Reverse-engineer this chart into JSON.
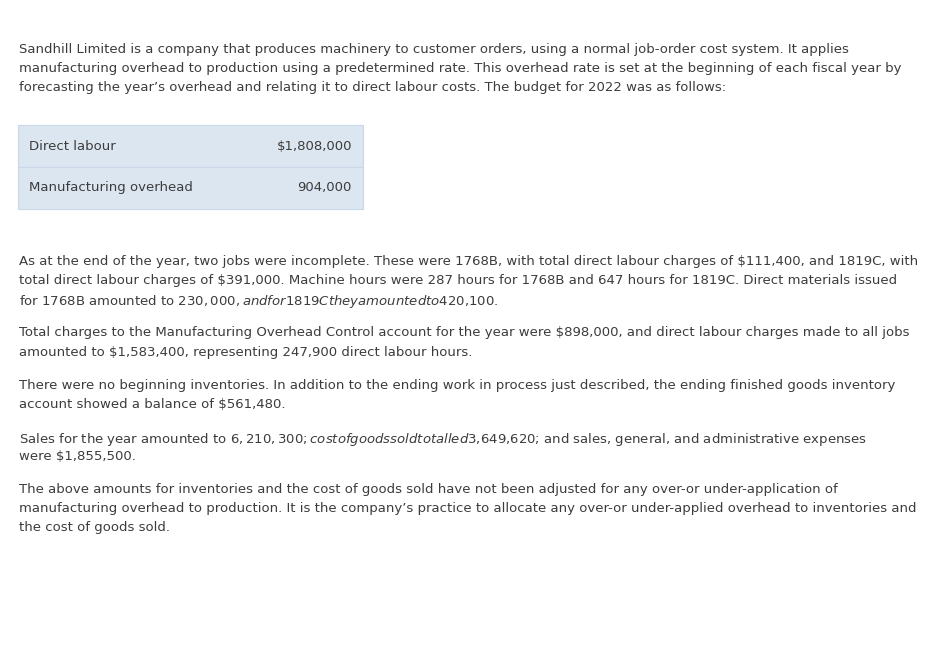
{
  "background_color": "#ffffff",
  "text_color": "#3c3c3c",
  "font_size_body": 9.5,
  "font_size_table": 9.5,
  "paragraph1_line1": "Sandhill Limited is a company that produces machinery to customer orders, using a normal job-order cost system. It applies",
  "paragraph1_line2": "manufacturing overhead to production using a predetermined rate. This overhead rate is set at the beginning of each fiscal year by",
  "paragraph1_line3": "forecasting the year’s overhead and relating it to direct labour costs. The budget for 2022 was as follows:",
  "table_rows": [
    [
      "Direct labour",
      "$1,808,000"
    ],
    [
      "Manufacturing overhead",
      "904,000"
    ]
  ],
  "table_bg_color": "#dce6f1",
  "table_border_color": "#c8d8e8",
  "paragraph2_line1": "As at the end of the year, two jobs were incomplete. These were 1768B, with total direct labour charges of $111,400, and 1819C, with",
  "paragraph2_line2": "total direct labour charges of $391,000. Machine hours were 287 hours for 1768B and 647 hours for 1819C. Direct materials issued",
  "paragraph2_line3": "for 1768B amounted to $230,000, and for 1819C they amounted to $420,100.",
  "paragraph3_line1": "Total charges to the Manufacturing Overhead Control account for the year were $898,000, and direct labour charges made to all jobs",
  "paragraph3_line2": "amounted to $1,583,400, representing 247,900 direct labour hours.",
  "paragraph4_line1": "There were no beginning inventories. In addition to the ending work in process just described, the ending finished goods inventory",
  "paragraph4_line2": "account showed a balance of $561,480.",
  "paragraph5_line1": "Sales for the year amounted to $6,210,300; cost of goods sold totalled $3,649,620; and sales, general, and administrative expenses",
  "paragraph5_line2": "were $1,855,500.",
  "paragraph6_line1": "The above amounts for inventories and the cost of goods sold have not been adjusted for any over-or under-application of",
  "paragraph6_line2": "manufacturing overhead to production. It is the company’s practice to allocate any over-or under-applied overhead to inventories and",
  "paragraph6_line3": "the cost of goods sold."
}
